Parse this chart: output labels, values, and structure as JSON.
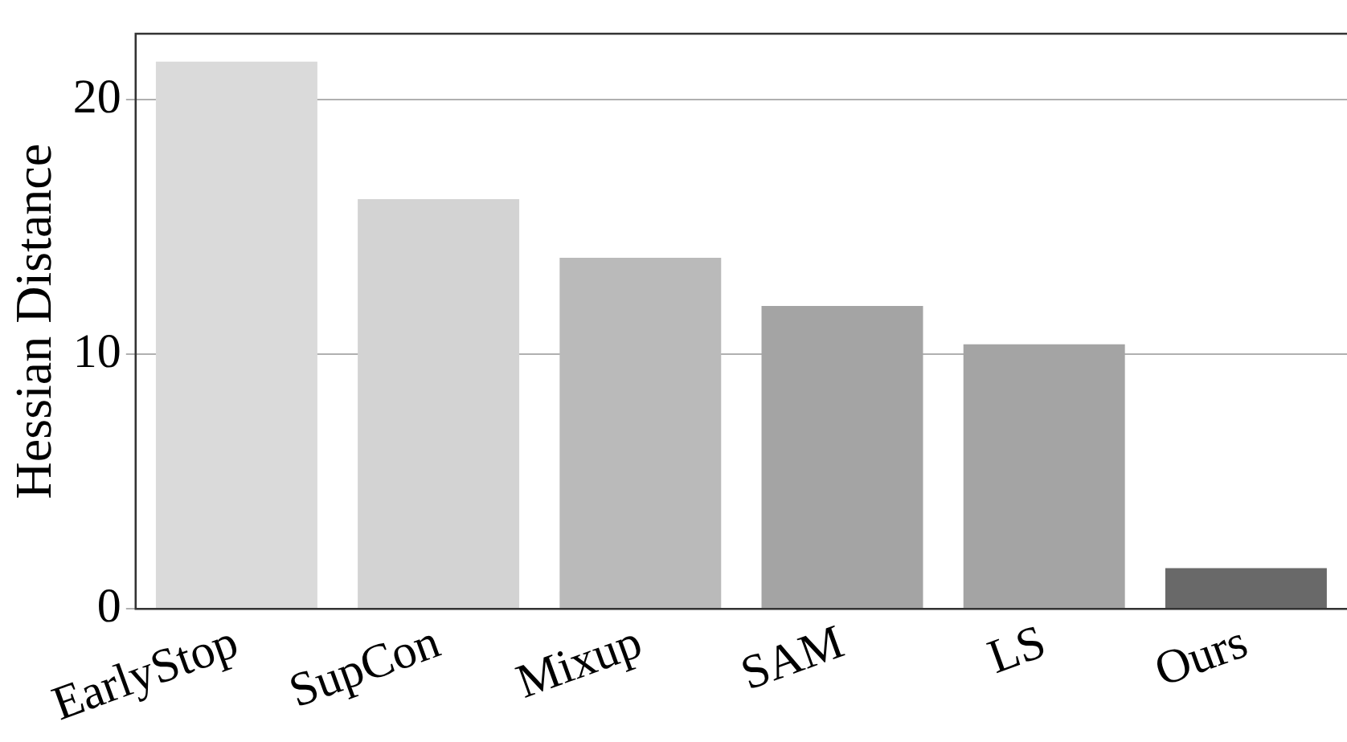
{
  "chart_data": {
    "type": "bar",
    "ylabel": "Hessian Distance",
    "categories": [
      "EarlyStop",
      "SupCon",
      "Mixup",
      "SAM",
      "LS",
      "Ours"
    ],
    "values": [
      21.5,
      16.1,
      13.8,
      11.9,
      10.4,
      1.6
    ],
    "colors": [
      "#dadada",
      "#d3d3d3",
      "#bababa",
      "#a4a4a4",
      "#a4a4a4",
      "#696969"
    ],
    "ylim": [
      0,
      22.6
    ],
    "yticks": [
      0,
      10,
      20
    ],
    "grid": "y",
    "legend": false
  }
}
